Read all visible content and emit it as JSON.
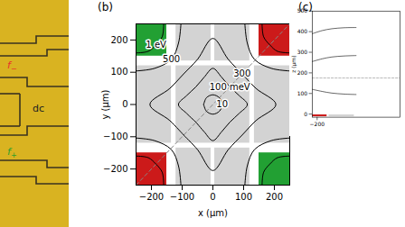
{
  "photo": {
    "labels": [
      {
        "text": "f",
        "subscript": "−",
        "color": "#e8322a"
      },
      {
        "text": "dc",
        "color": "#222222"
      },
      {
        "text": "f",
        "subscript": "+",
        "color": "#2ca02c"
      }
    ]
  },
  "chart_data": [
    {
      "type": "contour",
      "panel": "(b)",
      "xlabel": "x (µm)",
      "ylabel": "y (µm)",
      "xlim": [
        -250,
        250
      ],
      "ylim": [
        -250,
        250
      ],
      "xticks": [
        -200,
        -100,
        0,
        100,
        200
      ],
      "yticks": [
        -200,
        -100,
        0,
        100,
        200
      ],
      "electrodes": [
        {
          "x1": -120,
          "x2": 120,
          "y1": -120,
          "y2": 120,
          "color": "#d3d3d3"
        },
        {
          "x1": -250,
          "x2": -135,
          "y1": -120,
          "y2": 120,
          "color": "#d3d3d3"
        },
        {
          "x1": 135,
          "x2": 250,
          "y1": -120,
          "y2": 120,
          "color": "#d3d3d3"
        },
        {
          "x1": -120,
          "x2": -6,
          "y1": 135,
          "y2": 250,
          "color": "#d3d3d3"
        },
        {
          "x1": 6,
          "x2": 120,
          "y1": 135,
          "y2": 250,
          "color": "#d3d3d3"
        },
        {
          "x1": -120,
          "x2": -6,
          "y1": -250,
          "y2": -135,
          "color": "#d3d3d3"
        },
        {
          "x1": 6,
          "x2": 120,
          "y1": -250,
          "y2": -135,
          "color": "#d3d3d3"
        },
        {
          "x1": -250,
          "x2": -150,
          "y1": 150,
          "y2": 250,
          "color": "#22a033"
        },
        {
          "x1": 150,
          "x2": 250,
          "y1": 150,
          "y2": 250,
          "color": "#cc1a1a"
        },
        {
          "x1": -250,
          "x2": -150,
          "y1": -250,
          "y2": -150,
          "color": "#cc1a1a"
        },
        {
          "x1": 150,
          "x2": 250,
          "y1": -250,
          "y2": -150,
          "color": "#22a033"
        }
      ],
      "dashed_line": [
        [
          -250,
          -250
        ],
        [
          250,
          250
        ]
      ],
      "series": [
        {
          "name": "10",
          "values": [
            [
              [
                -30,
                0
              ],
              [
                -21,
                -21
              ],
              [
                0,
                -30
              ],
              [
                21,
                -21
              ],
              [
                30,
                0
              ],
              [
                21,
                21
              ],
              [
                0,
                30
              ],
              [
                -21,
                21
              ],
              [
                -30,
                0
              ]
            ]
          ]
        },
        {
          "name": "100 meV",
          "values": [
            [
              [
                -55,
                -55
              ],
              [
                -28,
                -85
              ],
              [
                0,
                -112
              ],
              [
                28,
                -85
              ],
              [
                55,
                -55
              ],
              [
                85,
                -28
              ],
              [
                112,
                0
              ],
              [
                85,
                28
              ],
              [
                55,
                55
              ],
              [
                28,
                85
              ],
              [
                0,
                112
              ],
              [
                -28,
                85
              ],
              [
                -55,
                55
              ],
              [
                -85,
                28
              ],
              [
                -112,
                0
              ],
              [
                -85,
                -28
              ],
              [
                -55,
                -55
              ]
            ]
          ]
        },
        {
          "name": "300",
          "values": [
            [
              [
                -95,
                -95
              ],
              [
                -50,
                -140
              ],
              [
                0,
                -205
              ],
              [
                50,
                -140
              ],
              [
                95,
                -95
              ],
              [
                140,
                -50
              ],
              [
                205,
                0
              ],
              [
                140,
                50
              ],
              [
                95,
                95
              ],
              [
                50,
                140
              ],
              [
                0,
                205
              ],
              [
                -50,
                140
              ],
              [
                -95,
                95
              ],
              [
                -140,
                50
              ],
              [
                -205,
                0
              ],
              [
                -140,
                -50
              ],
              [
                -95,
                -95
              ]
            ]
          ]
        },
        {
          "name": "500",
          "values": [
            [
              [
                -104,
                250
              ],
              [
                -112,
                190
              ],
              [
                -135,
                140
              ],
              [
                -190,
                112
              ],
              [
                -250,
                104
              ]
            ],
            [
              [
                104,
                250
              ],
              [
                112,
                190
              ],
              [
                135,
                140
              ],
              [
                190,
                112
              ],
              [
                250,
                104
              ]
            ],
            [
              [
                -104,
                -250
              ],
              [
                -112,
                -190
              ],
              [
                -135,
                -140
              ],
              [
                -190,
                -112
              ],
              [
                -250,
                -104
              ]
            ],
            [
              [
                104,
                -250
              ],
              [
                112,
                -190
              ],
              [
                135,
                -140
              ],
              [
                190,
                -112
              ],
              [
                250,
                -104
              ]
            ]
          ]
        },
        {
          "name": "1 eV",
          "values": [
            [
              [
                -160,
                250
              ],
              [
                -165,
                210
              ],
              [
                -185,
                185
              ],
              [
                -210,
                165
              ],
              [
                -250,
                160
              ]
            ],
            [
              [
                160,
                250
              ],
              [
                165,
                210
              ],
              [
                185,
                185
              ],
              [
                210,
                165
              ],
              [
                250,
                160
              ]
            ],
            [
              [
                -160,
                -250
              ],
              [
                -165,
                -210
              ],
              [
                -185,
                -185
              ],
              [
                -210,
                -165
              ],
              [
                -250,
                -160
              ]
            ],
            [
              [
                160,
                -250
              ],
              [
                165,
                -210
              ],
              [
                185,
                -185
              ],
              [
                210,
                -165
              ],
              [
                250,
                -160
              ]
            ]
          ]
        }
      ]
    },
    {
      "type": "contour",
      "panel": "(c)",
      "ylabel": "z (µm)",
      "xlim": [
        -225,
        225
      ],
      "ylim": [
        -15,
        500
      ],
      "xticks": [
        -200
      ],
      "yticks": [
        0,
        100,
        200,
        300,
        400,
        500
      ],
      "electrodes": [
        {
          "x1": -225,
          "x2": -150,
          "y1": -12,
          "y2": -3,
          "color": "#cc1a1a"
        },
        {
          "x1": -140,
          "x2": -10,
          "y1": -12,
          "y2": -3,
          "color": "#d3d3d3"
        }
      ],
      "dashed_line": [
        [
          -225,
          175
        ],
        [
          225,
          175
        ]
      ],
      "series": [
        {
          "values": [
            [
              [
                -225,
                390
              ],
              [
                -175,
                405
              ],
              [
                -125,
                414
              ],
              [
                -60,
                419
              ],
              [
                0,
                420
              ]
            ]
          ]
        },
        {
          "values": [
            [
              [
                -225,
                255
              ],
              [
                -175,
                268
              ],
              [
                -125,
                277
              ],
              [
                -60,
                282
              ],
              [
                0,
                284
              ]
            ]
          ]
        },
        {
          "values": [
            [
              [
                -225,
                120
              ],
              [
                -175,
                110
              ],
              [
                -125,
                102
              ],
              [
                -60,
                97
              ],
              [
                0,
                95
              ]
            ]
          ]
        }
      ]
    }
  ]
}
